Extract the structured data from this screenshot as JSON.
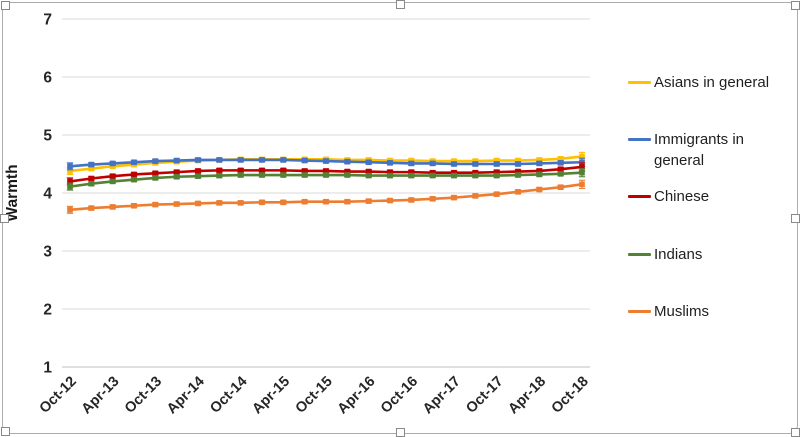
{
  "chart": {
    "y_axis": {
      "title": "Warmth",
      "ticks": [
        7,
        6,
        5,
        4,
        3,
        2,
        1
      ]
    },
    "x_axis": {
      "tick_labels": [
        "Oct-12",
        "Apr-13",
        "Oct-13",
        "Apr-14",
        "Oct-14",
        "Apr-15",
        "Oct-15",
        "Apr-16",
        "Oct-16",
        "Apr-17",
        "Oct-17",
        "Apr-18",
        "Oct-18"
      ]
    },
    "colors": {
      "gridline": "#d9d9d9",
      "axis_line": "#bfbfbf",
      "tick_text": "#262626",
      "frame_border": "#acacac"
    }
  },
  "chart_data": {
    "type": "line",
    "title": "",
    "xlabel": "",
    "ylabel": "Warmth",
    "ylim": [
      1,
      7
    ],
    "grid": true,
    "legend_position": "right",
    "x": [
      "Oct-12",
      "Jan-13",
      "Apr-13",
      "Jul-13",
      "Oct-13",
      "Jan-14",
      "Apr-14",
      "Jul-14",
      "Oct-14",
      "Jan-15",
      "Apr-15",
      "Jul-15",
      "Oct-15",
      "Jan-16",
      "Apr-16",
      "Jul-16",
      "Oct-16",
      "Jan-17",
      "Apr-17",
      "Jul-17",
      "Oct-17",
      "Jan-18",
      "Apr-18",
      "Jul-18",
      "Oct-18"
    ],
    "x_tick_labels": [
      "Oct-12",
      "Apr-13",
      "Oct-13",
      "Apr-14",
      "Oct-14",
      "Apr-15",
      "Oct-15",
      "Apr-16",
      "Oct-16",
      "Apr-17",
      "Oct-17",
      "Apr-18",
      "Oct-18"
    ],
    "error_bars": {
      "default": 0.03,
      "first": 0.06,
      "last": 0.07
    },
    "series": [
      {
        "name": "Asians in general",
        "color": "#FFC000",
        "values": [
          4.38,
          4.42,
          4.46,
          4.49,
          4.52,
          4.54,
          4.56,
          4.57,
          4.58,
          4.58,
          4.58,
          4.58,
          4.58,
          4.57,
          4.57,
          4.56,
          4.56,
          4.55,
          4.55,
          4.55,
          4.56,
          4.56,
          4.57,
          4.59,
          4.63
        ]
      },
      {
        "name": "Immigrants in general",
        "color": "#4472C4",
        "values": [
          4.46,
          4.49,
          4.51,
          4.53,
          4.55,
          4.56,
          4.57,
          4.57,
          4.57,
          4.57,
          4.57,
          4.56,
          4.55,
          4.54,
          4.53,
          4.52,
          4.51,
          4.51,
          4.5,
          4.5,
          4.5,
          4.5,
          4.51,
          4.52,
          4.53
        ]
      },
      {
        "name": "Chinese",
        "color": "#C00000",
        "values": [
          4.2,
          4.25,
          4.29,
          4.32,
          4.34,
          4.36,
          4.38,
          4.39,
          4.39,
          4.39,
          4.39,
          4.38,
          4.38,
          4.37,
          4.37,
          4.36,
          4.36,
          4.35,
          4.35,
          4.35,
          4.36,
          4.37,
          4.38,
          4.41,
          4.45
        ]
      },
      {
        "name": "Indians",
        "color": "#548235",
        "values": [
          4.11,
          4.16,
          4.2,
          4.23,
          4.26,
          4.28,
          4.29,
          4.3,
          4.31,
          4.31,
          4.31,
          4.31,
          4.31,
          4.31,
          4.3,
          4.3,
          4.3,
          4.3,
          4.3,
          4.3,
          4.3,
          4.31,
          4.32,
          4.33,
          4.35
        ]
      },
      {
        "name": "Muslims",
        "color": "#ED7D31",
        "values": [
          3.71,
          3.74,
          3.76,
          3.78,
          3.8,
          3.81,
          3.82,
          3.83,
          3.83,
          3.84,
          3.84,
          3.85,
          3.85,
          3.85,
          3.86,
          3.87,
          3.88,
          3.9,
          3.92,
          3.95,
          3.98,
          4.02,
          4.06,
          4.1,
          4.15
        ]
      }
    ]
  }
}
